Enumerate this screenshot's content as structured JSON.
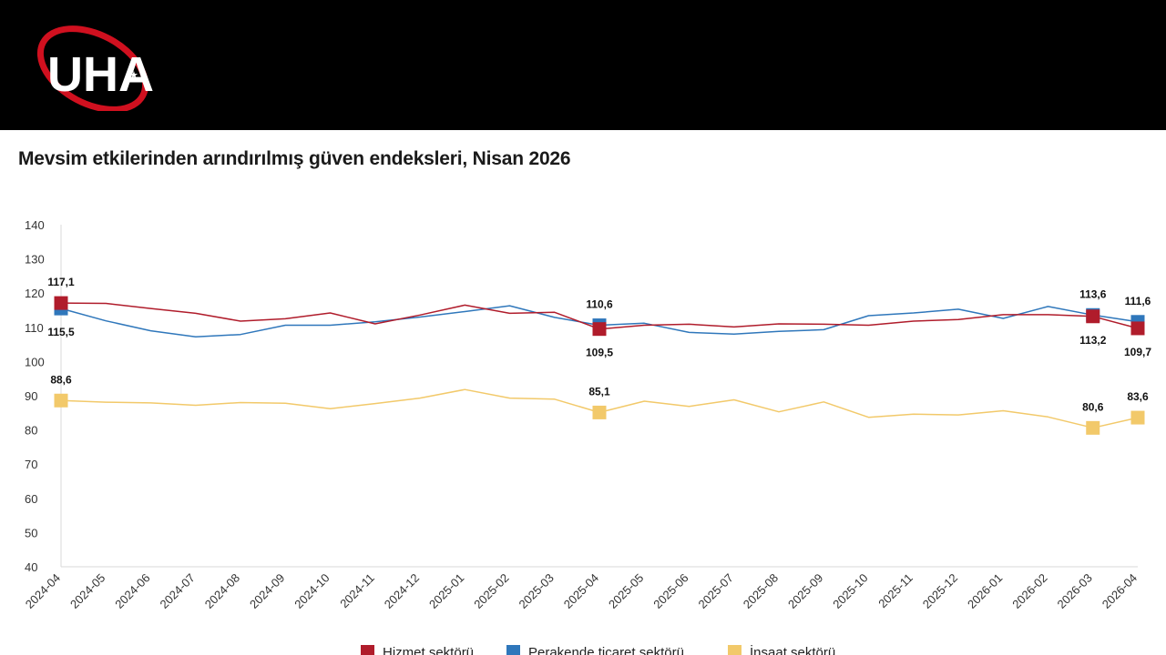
{
  "header": {
    "logo_text": "UHA",
    "colors": {
      "bar_bg": "#000000",
      "logo_red": "#d0101f",
      "logo_white": "#ffffff"
    }
  },
  "chart_data": {
    "type": "line",
    "title": "Mevsim etkilerinden arındırılmış güven endeksleri, Nisan 2026",
    "xlabel": "",
    "ylabel": "",
    "ylim": [
      40,
      140
    ],
    "yticks": [
      "140",
      "130",
      "120",
      "110",
      "100",
      "90",
      "80",
      "70",
      "60",
      "50",
      "40"
    ],
    "grid": false,
    "legend_position": "bottom",
    "categories": [
      "2024-04",
      "2024-05",
      "2024-06",
      "2024-07",
      "2024-08",
      "2024-09",
      "2024-10",
      "2024-11",
      "2024-12",
      "2025-01",
      "2025-02",
      "2025-03",
      "2025-04",
      "2025-05",
      "2025-06",
      "2025-07",
      "2025-08",
      "2025-09",
      "2025-10",
      "2025-11",
      "2025-12",
      "2026-01",
      "2026-02",
      "2026-03",
      "2026-04"
    ],
    "series": [
      {
        "name": "Hizmet sektörü",
        "color": "#b01c2b",
        "values": [
          117.1,
          117.0,
          115.5,
          114.1,
          111.8,
          112.5,
          114.2,
          111.0,
          113.6,
          116.5,
          114.1,
          114.4,
          109.5,
          110.6,
          110.9,
          110.1,
          111.0,
          110.9,
          110.6,
          111.8,
          112.3,
          113.7,
          113.7,
          113.2,
          109.7
        ]
      },
      {
        "name": "Perakende ticaret sektörü",
        "color": "#2f77bb",
        "values": [
          115.5,
          111.9,
          109.0,
          107.2,
          107.9,
          110.6,
          110.6,
          111.6,
          113.0,
          114.6,
          116.3,
          112.9,
          110.6,
          111.2,
          108.5,
          108.0,
          108.8,
          109.3,
          113.4,
          114.2,
          115.3,
          112.6,
          116.1,
          113.6,
          111.6
        ]
      },
      {
        "name": "İnşaat sektörü",
        "color": "#f2c96a",
        "values": [
          88.6,
          88.1,
          87.9,
          87.2,
          88.0,
          87.8,
          86.2,
          87.7,
          89.3,
          91.8,
          89.3,
          89.0,
          85.1,
          88.4,
          86.9,
          88.8,
          85.3,
          88.2,
          83.7,
          84.6,
          84.4,
          85.6,
          83.8,
          80.6,
          83.6
        ]
      }
    ],
    "data_labels": [
      {
        "series": 0,
        "index": 0,
        "text": "117,1",
        "pos": "above"
      },
      {
        "series": 1,
        "index": 0,
        "text": "115,5",
        "pos": "below"
      },
      {
        "series": 2,
        "index": 0,
        "text": "88,6",
        "pos": "above"
      },
      {
        "series": 1,
        "index": 12,
        "text": "110,6",
        "pos": "above"
      },
      {
        "series": 0,
        "index": 12,
        "text": "109,5",
        "pos": "below"
      },
      {
        "series": 2,
        "index": 12,
        "text": "85,1",
        "pos": "above"
      },
      {
        "series": 1,
        "index": 23,
        "text": "113,6",
        "pos": "above"
      },
      {
        "series": 0,
        "index": 23,
        "text": "113,2",
        "pos": "below"
      },
      {
        "series": 2,
        "index": 23,
        "text": "80,6",
        "pos": "above"
      },
      {
        "series": 1,
        "index": 24,
        "text": "111,6",
        "pos": "above"
      },
      {
        "series": 0,
        "index": 24,
        "text": "109,7",
        "pos": "below"
      },
      {
        "series": 2,
        "index": 24,
        "text": "83,6",
        "pos": "above"
      }
    ]
  }
}
